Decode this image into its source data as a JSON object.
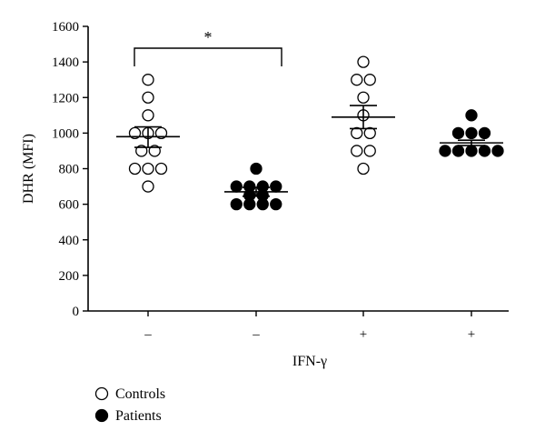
{
  "chart_data": {
    "type": "scatter",
    "xlabel": "IFN-γ",
    "ylabel": "DHR (MFI)",
    "ylim": [
      0,
      1600
    ],
    "yticks": [
      0,
      200,
      400,
      600,
      800,
      1000,
      1200,
      1400,
      1600
    ],
    "ytick_labels": [
      "0",
      "200",
      "400",
      "600",
      "800",
      "1000",
      "1200",
      "1400",
      "1600"
    ],
    "categories": [
      "–",
      "–",
      "+",
      "+"
    ],
    "groups": [
      {
        "series": "Controls",
        "values": [
          700,
          800,
          800,
          800,
          900,
          900,
          1000,
          1000,
          1000,
          1100,
          1200,
          1300
        ],
        "mean": 980,
        "sem": [
          920,
          1035
        ]
      },
      {
        "series": "Patients",
        "values": [
          600,
          600,
          600,
          600,
          650,
          650,
          700,
          700,
          700,
          700,
          800
        ],
        "mean": 670,
        "sem": [
          645,
          695
        ]
      },
      {
        "series": "Controls",
        "values": [
          800,
          900,
          900,
          1000,
          1000,
          1100,
          1200,
          1300,
          1300,
          1400
        ],
        "mean": 1090,
        "sem": [
          1025,
          1155
        ]
      },
      {
        "series": "Patients",
        "values": [
          900,
          900,
          900,
          900,
          900,
          1000,
          1000,
          1000,
          1100
        ],
        "mean": 945,
        "sem": [
          930,
          960
        ]
      }
    ],
    "significance": {
      "between": [
        0,
        1
      ],
      "label": "*"
    },
    "legend": [
      {
        "name": "Controls",
        "marker": "open-circle"
      },
      {
        "name": "Patients",
        "marker": "filled-circle"
      }
    ],
    "legend_position": "bottom-left",
    "grid": false
  }
}
